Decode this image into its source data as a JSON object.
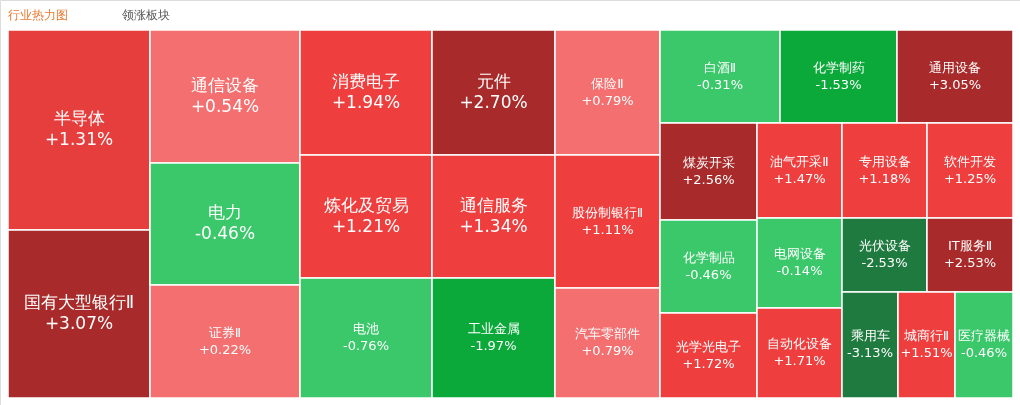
{
  "chart_data": {
    "type": "other",
    "title": "行业热力图",
    "subtitle": "领涨板块",
    "categories": [
      "半导体",
      "国有大型银行Ⅱ",
      "通信设备",
      "电力",
      "证券Ⅱ",
      "消费电子",
      "炼化及贸易",
      "电池",
      "元件",
      "通信服务",
      "工业金属",
      "保险Ⅱ",
      "股份制银行Ⅱ",
      "汽车零部件",
      "白酒Ⅱ",
      "化学制药",
      "通用设备",
      "煤炭开采",
      "油气开采Ⅱ",
      "专用设备",
      "软件开发",
      "化学制品",
      "光学光电子",
      "电网设备",
      "自动化设备",
      "光伏设备",
      "IT服务Ⅱ",
      "乘用车",
      "城商行Ⅱ",
      "医疗器械"
    ],
    "values": [
      1.31,
      3.07,
      0.54,
      -0.46,
      0.22,
      1.94,
      1.21,
      -0.76,
      2.7,
      1.34,
      -1.97,
      0.79,
      1.11,
      0.79,
      -0.31,
      -1.53,
      3.05,
      2.56,
      1.47,
      1.18,
      1.25,
      -0.46,
      1.72,
      -0.14,
      1.71,
      -2.53,
      2.53,
      -3.13,
      1.51,
      -0.46
    ],
    "value_labels": [
      "+1.31%",
      "+3.07%",
      "+0.54%",
      "-0.46%",
      "+0.22%",
      "+1.94%",
      "+1.21%",
      "-0.76%",
      "+2.70%",
      "+1.34%",
      "-1.97%",
      "+0.79%",
      "+1.11%",
      "+0.79%",
      "-0.31%",
      "-1.53%",
      "+3.05%",
      "+2.56%",
      "+1.47%",
      "+1.18%",
      "+1.25%",
      "-0.46%",
      "+1.72%",
      "-0.14%",
      "+1.71%",
      "-2.53%",
      "+2.53%",
      "-3.13%",
      "+1.51%",
      "-0.46%"
    ],
    "colors": [
      "#e63d3d",
      "#a82a2a",
      "#f46f6f",
      "#3ac86a",
      "#f46f6f",
      "#ee3e3e",
      "#ee3e3e",
      "#3ac86a",
      "#a82a2a",
      "#ee3e3e",
      "#0aa93a",
      "#f46f6f",
      "#ee3e3e",
      "#f46f6f",
      "#3ac86a",
      "#0aa93a",
      "#a82a2a",
      "#a82a2a",
      "#ee3e3e",
      "#ee3e3e",
      "#ee3e3e",
      "#3ac86a",
      "#ee3e3e",
      "#3ac86a",
      "#ee3e3e",
      "#1e7a3e",
      "#a82a2a",
      "#1e7a3e",
      "#ee3e3e",
      "#3ac86a"
    ]
  }
}
